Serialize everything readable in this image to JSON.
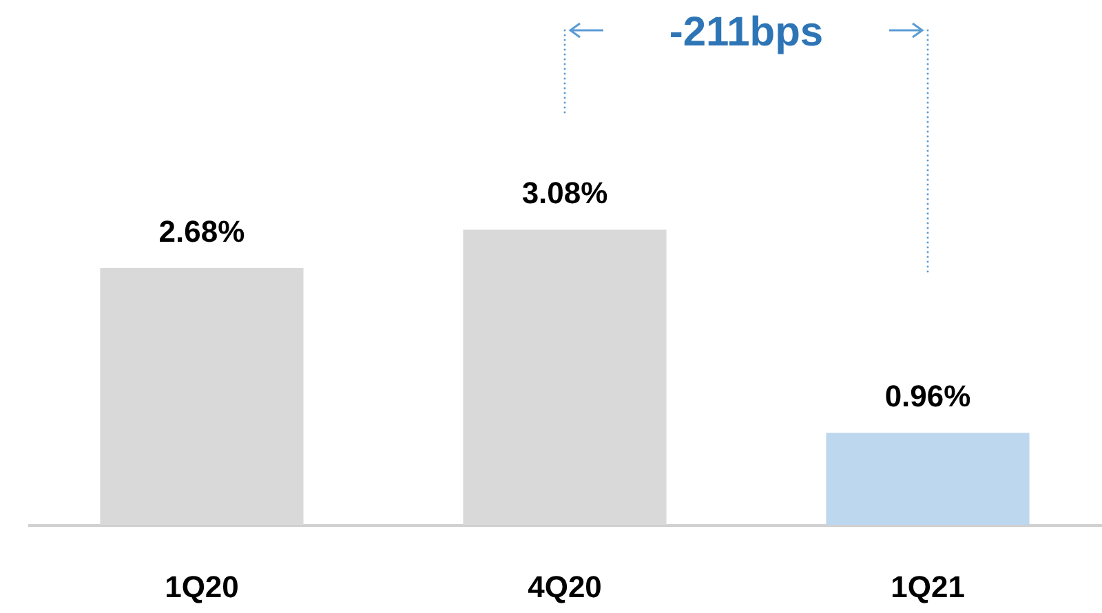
{
  "chart_data": {
    "type": "bar",
    "categories": [
      "1Q20",
      "4Q20",
      "1Q21"
    ],
    "values": [
      2.68,
      3.08,
      0.96
    ],
    "value_labels": [
      "2.68%",
      "3.08%",
      "0.96%"
    ],
    "colors": [
      "#d9d9d9",
      "#d9d9d9",
      "#bdd7ee"
    ],
    "annotations": [
      "-211bps"
    ]
  }
}
